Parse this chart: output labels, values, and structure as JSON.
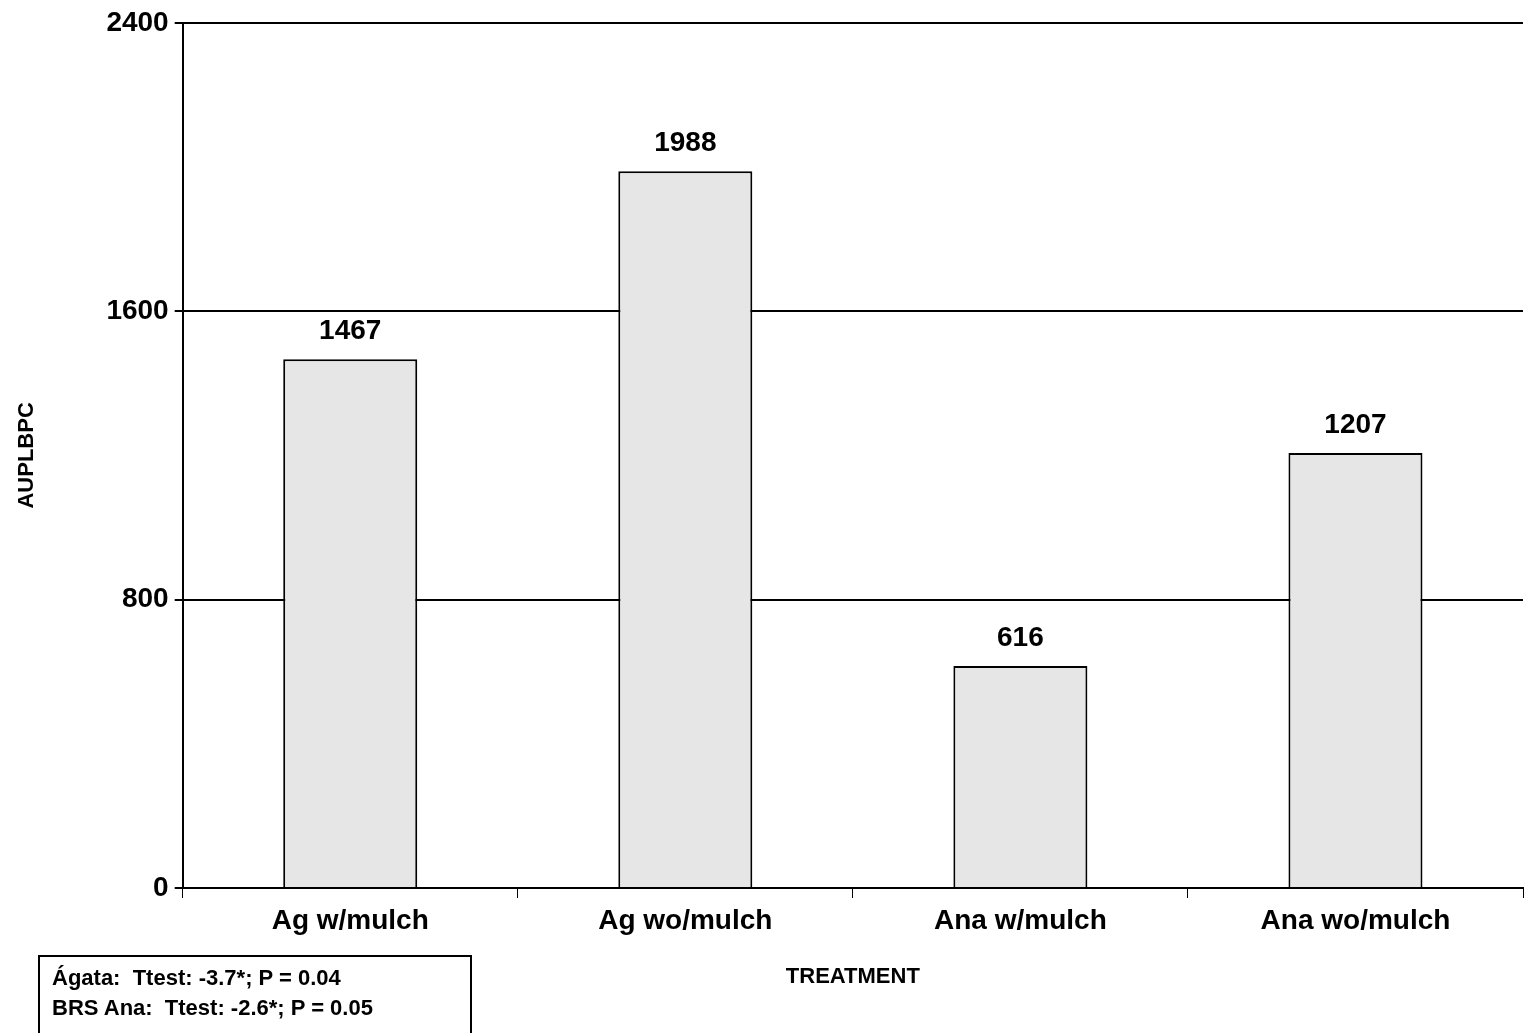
{
  "chart_data": {
    "type": "bar",
    "xlabel": "TREATMENT",
    "ylabel": "AUPLBPC",
    "categories": [
      "Ag w/mulch",
      "Ag wo/mulch",
      "Ana w/mulch",
      "Ana wo/mulch"
    ],
    "values": [
      1467,
      1988,
      616,
      1207
    ],
    "color": "#e6e6e6",
    "ylim": [
      0,
      2400
    ],
    "yticks": [
      0,
      800,
      1600,
      2400
    ],
    "grid": "y",
    "data_labels": true,
    "annotations": [
      "Ágata:  Ttest: -3.7*; P = 0.04",
      "BRS Ana:  Ttest: -2.6*; P = 0.05"
    ]
  }
}
